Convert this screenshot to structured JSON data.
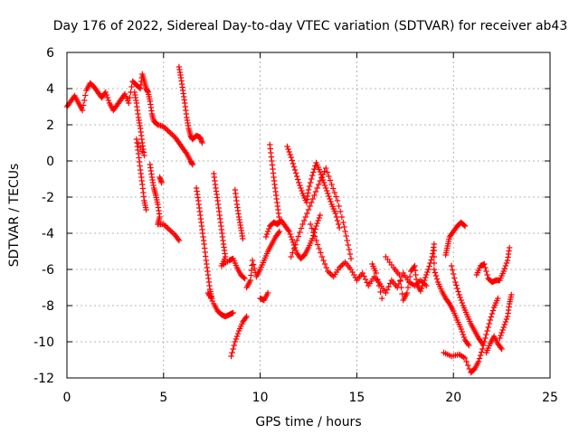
{
  "chart_data": {
    "type": "scatter",
    "title": "Day 176 of 2022, Sidereal Day-to-day VTEC variation (SDTVAR) for receiver ab43",
    "xlabel": "GPS time / hours",
    "ylabel": "SDTVAR / TECUs",
    "xlim": [
      0,
      25
    ],
    "ylim": [
      -12,
      6
    ],
    "xticks": [
      0,
      5,
      10,
      15,
      20,
      25
    ],
    "yticks": [
      6,
      4,
      2,
      0,
      -2,
      -4,
      -6,
      -8,
      -10,
      -12
    ],
    "grid": true,
    "marker": "plus",
    "color": "#ff0000",
    "series": [
      {
        "name": "SDTVAR",
        "points": [
          [
            0.0,
            3.0
          ],
          [
            0.2,
            3.3
          ],
          [
            0.4,
            3.6
          ],
          [
            0.6,
            3.2
          ],
          [
            0.8,
            2.8
          ],
          [
            1.0,
            3.9
          ],
          [
            1.2,
            4.3
          ],
          [
            1.4,
            4.1
          ],
          [
            1.6,
            3.8
          ],
          [
            1.8,
            3.5
          ],
          [
            2.0,
            3.8
          ],
          [
            2.2,
            3.2
          ],
          [
            2.4,
            2.8
          ],
          [
            2.6,
            3.1
          ],
          [
            2.8,
            3.4
          ],
          [
            3.0,
            3.7
          ],
          [
            3.2,
            3.2
          ],
          [
            3.4,
            4.4
          ],
          [
            3.6,
            4.2
          ],
          [
            3.8,
            4.0
          ],
          [
            3.9,
            4.8
          ],
          [
            4.0,
            4.4
          ],
          [
            4.1,
            4.0
          ],
          [
            4.2,
            3.8
          ],
          [
            4.3,
            3.3
          ],
          [
            4.4,
            2.6
          ],
          [
            4.5,
            2.2
          ],
          [
            4.7,
            2.0
          ],
          [
            5.0,
            1.9
          ],
          [
            5.3,
            1.6
          ],
          [
            5.6,
            1.3
          ],
          [
            5.8,
            1.0
          ],
          [
            6.0,
            0.7
          ],
          [
            6.2,
            0.4
          ],
          [
            6.4,
            0.0
          ],
          [
            6.5,
            -0.2
          ],
          [
            3.5,
            3.8
          ],
          [
            3.6,
            3.2
          ],
          [
            3.7,
            2.4
          ],
          [
            3.8,
            1.8
          ],
          [
            3.9,
            1.0
          ],
          [
            4.0,
            0.3
          ],
          [
            3.6,
            1.2
          ],
          [
            3.7,
            0.4
          ],
          [
            3.8,
            -0.5
          ],
          [
            3.9,
            -1.3
          ],
          [
            4.0,
            -2.2
          ],
          [
            4.1,
            -2.7
          ],
          [
            4.3,
            -0.2
          ],
          [
            4.4,
            -0.9
          ],
          [
            4.5,
            -1.5
          ],
          [
            4.6,
            -1.9
          ],
          [
            4.7,
            -2.4
          ],
          [
            4.8,
            -3.1
          ],
          [
            4.7,
            -3.5
          ],
          [
            5.0,
            -3.5
          ],
          [
            5.3,
            -3.8
          ],
          [
            5.6,
            -4.1
          ],
          [
            5.8,
            -4.4
          ],
          [
            4.8,
            -0.9
          ],
          [
            4.9,
            -1.2
          ],
          [
            5.8,
            5.2
          ],
          [
            5.9,
            4.6
          ],
          [
            6.0,
            3.9
          ],
          [
            6.1,
            3.2
          ],
          [
            6.2,
            2.4
          ],
          [
            6.3,
            1.8
          ],
          [
            6.4,
            1.4
          ],
          [
            6.5,
            1.2
          ],
          [
            6.7,
            1.4
          ],
          [
            6.9,
            1.3
          ],
          [
            7.0,
            1.0
          ],
          [
            6.7,
            -1.5
          ],
          [
            6.8,
            -2.2
          ],
          [
            6.9,
            -3.0
          ],
          [
            7.0,
            -3.8
          ],
          [
            7.1,
            -4.6
          ],
          [
            7.2,
            -5.5
          ],
          [
            7.3,
            -6.3
          ],
          [
            7.4,
            -7.1
          ],
          [
            7.5,
            -7.6
          ],
          [
            7.3,
            -7.3
          ],
          [
            7.6,
            -7.9
          ],
          [
            7.8,
            -8.3
          ],
          [
            8.0,
            -8.5
          ],
          [
            8.2,
            -8.6
          ],
          [
            8.4,
            -8.5
          ],
          [
            8.6,
            -8.4
          ],
          [
            7.6,
            -0.7
          ],
          [
            7.7,
            -1.5
          ],
          [
            7.8,
            -2.2
          ],
          [
            7.9,
            -3.0
          ],
          [
            8.0,
            -3.8
          ],
          [
            8.1,
            -4.6
          ],
          [
            8.2,
            -5.3
          ],
          [
            8.0,
            -5.8
          ],
          [
            8.4,
            -5.5
          ],
          [
            8.6,
            -5.4
          ],
          [
            8.8,
            -5.9
          ],
          [
            9.0,
            -6.3
          ],
          [
            9.2,
            -6.5
          ],
          [
            8.5,
            -10.8
          ],
          [
            8.7,
            -10.0
          ],
          [
            8.9,
            -9.4
          ],
          [
            9.1,
            -8.9
          ],
          [
            9.3,
            -8.6
          ],
          [
            8.7,
            -1.6
          ],
          [
            8.8,
            -2.4
          ],
          [
            8.9,
            -3.1
          ],
          [
            9.0,
            -3.7
          ],
          [
            9.1,
            -4.3
          ],
          [
            9.3,
            -7.0
          ],
          [
            9.5,
            -6.6
          ],
          [
            9.6,
            -5.5
          ],
          [
            9.8,
            -6.4
          ],
          [
            10.0,
            -6.0
          ],
          [
            10.2,
            -5.5
          ],
          [
            10.4,
            -5.0
          ],
          [
            10.6,
            -4.6
          ],
          [
            10.8,
            -4.2
          ],
          [
            11.0,
            -3.9
          ],
          [
            10.0,
            -7.6
          ],
          [
            10.2,
            -7.7
          ],
          [
            10.4,
            -7.3
          ],
          [
            10.3,
            -4.2
          ],
          [
            10.5,
            -3.6
          ],
          [
            10.7,
            -3.4
          ],
          [
            10.9,
            -3.5
          ],
          [
            11.1,
            -3.3
          ],
          [
            11.3,
            -3.6
          ],
          [
            11.5,
            -3.9
          ],
          [
            11.7,
            -4.5
          ],
          [
            11.9,
            -5.1
          ],
          [
            12.1,
            -5.4
          ],
          [
            12.3,
            -5.2
          ],
          [
            12.5,
            -4.8
          ],
          [
            12.7,
            -4.3
          ],
          [
            12.9,
            -3.6
          ],
          [
            13.1,
            -3.0
          ],
          [
            10.5,
            0.9
          ],
          [
            10.6,
            0.0
          ],
          [
            10.7,
            -0.9
          ],
          [
            10.8,
            -1.7
          ],
          [
            10.9,
            -2.5
          ],
          [
            11.0,
            -3.3
          ],
          [
            11.4,
            0.8
          ],
          [
            11.6,
            0.2
          ],
          [
            11.8,
            -0.5
          ],
          [
            12.0,
            -1.2
          ],
          [
            12.2,
            -1.8
          ],
          [
            12.4,
            -2.3
          ],
          [
            12.5,
            -1.6
          ],
          [
            12.7,
            -0.8
          ],
          [
            12.9,
            -0.1
          ],
          [
            13.1,
            -0.6
          ],
          [
            13.3,
            -1.2
          ],
          [
            13.5,
            -1.8
          ],
          [
            13.7,
            -2.4
          ],
          [
            13.9,
            -2.9
          ],
          [
            14.1,
            -3.7
          ],
          [
            11.6,
            -5.3
          ],
          [
            11.9,
            -4.4
          ],
          [
            12.2,
            -3.5
          ],
          [
            12.5,
            -2.7
          ],
          [
            12.8,
            -1.9
          ],
          [
            13.1,
            -1.1
          ],
          [
            13.4,
            -0.4
          ],
          [
            13.7,
            -1.3
          ],
          [
            14.0,
            -2.2
          ],
          [
            14.3,
            -3.4
          ],
          [
            14.5,
            -4.4
          ],
          [
            14.7,
            -5.4
          ],
          [
            12.6,
            -3.5
          ],
          [
            12.9,
            -4.4
          ],
          [
            13.2,
            -5.3
          ],
          [
            13.5,
            -6.1
          ],
          [
            13.8,
            -6.4
          ],
          [
            14.1,
            -5.9
          ],
          [
            14.4,
            -5.6
          ],
          [
            14.7,
            -6.0
          ],
          [
            15.0,
            -6.6
          ],
          [
            15.3,
            -6.2
          ],
          [
            15.6,
            -6.9
          ],
          [
            15.9,
            -6.4
          ],
          [
            16.2,
            -6.8
          ],
          [
            16.5,
            -7.3
          ],
          [
            16.8,
            -6.6
          ],
          [
            17.1,
            -7.0
          ],
          [
            17.4,
            -6.2
          ],
          [
            17.7,
            -6.7
          ],
          [
            18.0,
            -6.9
          ],
          [
            18.3,
            -6.6
          ],
          [
            18.6,
            -6.9
          ],
          [
            15.8,
            -5.7
          ],
          [
            16.0,
            -6.2
          ],
          [
            16.3,
            -7.6
          ],
          [
            16.5,
            -5.3
          ],
          [
            16.9,
            -5.9
          ],
          [
            17.2,
            -6.3
          ],
          [
            17.4,
            -7.7
          ],
          [
            17.6,
            -7.3
          ],
          [
            17.8,
            -6.1
          ],
          [
            18.0,
            -5.8
          ],
          [
            18.1,
            -6.8
          ],
          [
            18.3,
            -7.2
          ],
          [
            18.5,
            -6.6
          ],
          [
            18.7,
            -6.0
          ],
          [
            18.9,
            -5.3
          ],
          [
            19.0,
            -4.6
          ],
          [
            19.0,
            -6.0
          ],
          [
            19.2,
            -6.7
          ],
          [
            19.4,
            -7.2
          ],
          [
            19.6,
            -7.6
          ],
          [
            19.8,
            -7.9
          ],
          [
            20.0,
            -8.3
          ],
          [
            20.2,
            -8.8
          ],
          [
            20.4,
            -9.3
          ],
          [
            20.6,
            -9.9
          ],
          [
            20.8,
            -10.2
          ],
          [
            19.6,
            -5.2
          ],
          [
            19.7,
            -4.7
          ],
          [
            19.8,
            -4.2
          ],
          [
            20.0,
            -3.9
          ],
          [
            20.2,
            -3.6
          ],
          [
            20.4,
            -3.4
          ],
          [
            20.6,
            -3.6
          ],
          [
            19.9,
            -5.8
          ],
          [
            20.1,
            -6.7
          ],
          [
            20.3,
            -7.4
          ],
          [
            20.5,
            -8.0
          ],
          [
            20.7,
            -8.5
          ],
          [
            20.9,
            -9.0
          ],
          [
            21.1,
            -9.4
          ],
          [
            21.3,
            -9.8
          ],
          [
            21.5,
            -10.1
          ],
          [
            19.5,
            -10.6
          ],
          [
            19.9,
            -10.8
          ],
          [
            20.3,
            -10.7
          ],
          [
            20.6,
            -10.9
          ],
          [
            20.9,
            -11.7
          ],
          [
            21.1,
            -11.5
          ],
          [
            21.3,
            -11.1
          ],
          [
            21.5,
            -10.4
          ],
          [
            21.7,
            -9.6
          ],
          [
            21.9,
            -8.8
          ],
          [
            22.1,
            -8.1
          ],
          [
            22.3,
            -7.6
          ],
          [
            21.2,
            -6.3
          ],
          [
            21.4,
            -5.8
          ],
          [
            21.6,
            -5.7
          ],
          [
            21.8,
            -6.5
          ],
          [
            22.0,
            -6.7
          ],
          [
            22.2,
            -6.6
          ],
          [
            22.4,
            -6.6
          ],
          [
            22.6,
            -6.1
          ],
          [
            22.8,
            -5.5
          ],
          [
            22.9,
            -4.8
          ],
          [
            22.4,
            -9.8
          ],
          [
            22.6,
            -9.2
          ],
          [
            22.8,
            -8.6
          ],
          [
            22.9,
            -7.9
          ],
          [
            23.0,
            -7.4
          ],
          [
            21.7,
            -10.6
          ],
          [
            21.9,
            -10.1
          ],
          [
            22.1,
            -9.7
          ],
          [
            22.3,
            -10.1
          ],
          [
            22.5,
            -10.4
          ]
        ]
      }
    ]
  }
}
